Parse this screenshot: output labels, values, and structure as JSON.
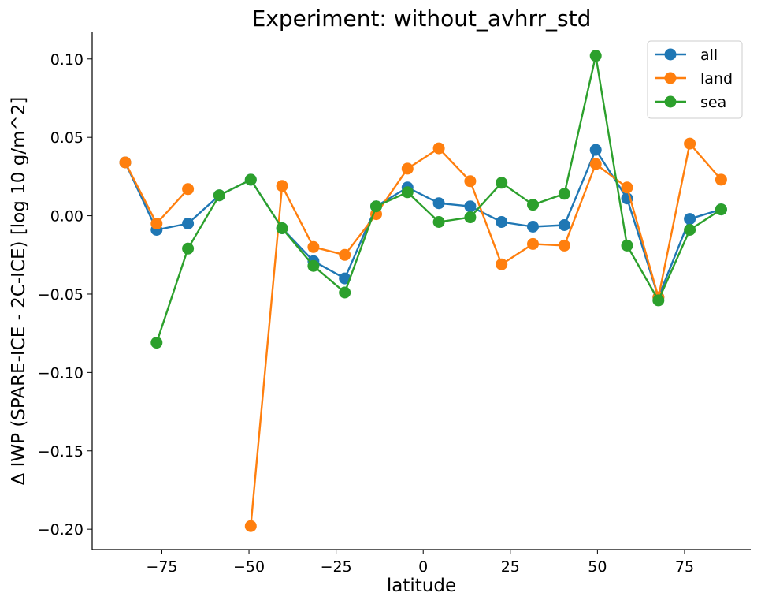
{
  "chart_data": {
    "type": "line",
    "title": "Experiment: without_avhrr_std",
    "xlabel": "latitude",
    "ylabel": "Δ IWP (SPARE-ICE - 2C-ICE) [log 10 g/m^2]",
    "xlim": [
      -95,
      94
    ],
    "ylim": [
      -0.213,
      0.117
    ],
    "xticks": [
      -75,
      -50,
      -25,
      0,
      25,
      50,
      75
    ],
    "xtick_labels": [
      "−75",
      "−50",
      "−25",
      "0",
      "25",
      "50",
      "75"
    ],
    "yticks": [
      0.1,
      0.05,
      0.0,
      -0.05,
      -0.1,
      -0.15,
      -0.2
    ],
    "ytick_labels": [
      "0.10",
      "0.05",
      "0.00",
      "−0.05",
      "−0.10",
      "−0.15",
      "−0.20"
    ],
    "grid": false,
    "legend_position": "top-right",
    "x": [
      -85.5,
      -76.5,
      -67.5,
      -58.5,
      -49.5,
      -40.5,
      -31.5,
      -22.5,
      -13.5,
      -4.5,
      4.5,
      13.5,
      22.5,
      31.5,
      40.5,
      49.5,
      58.5,
      67.5,
      76.5,
      85.5
    ],
    "series": [
      {
        "name": "all",
        "color": "#1f77b4",
        "values": [
          0.034,
          -0.009,
          -0.005,
          0.013,
          0.023,
          -0.008,
          -0.029,
          -0.04,
          0.006,
          0.018,
          0.008,
          0.006,
          -0.004,
          -0.007,
          -0.006,
          0.042,
          0.011,
          -0.052,
          -0.002,
          0.004
        ]
      },
      {
        "name": "land",
        "color": "#ff7f0e",
        "values": [
          0.034,
          -0.005,
          0.017,
          null,
          -0.198,
          0.019,
          -0.02,
          -0.025,
          0.001,
          0.03,
          0.043,
          0.022,
          -0.031,
          -0.018,
          -0.019,
          0.033,
          0.018,
          -0.052,
          0.046,
          0.023
        ]
      },
      {
        "name": "sea",
        "color": "#2ca02c",
        "values": [
          null,
          -0.081,
          -0.021,
          0.013,
          0.023,
          -0.008,
          -0.032,
          -0.049,
          0.006,
          0.015,
          -0.004,
          -0.001,
          0.021,
          0.007,
          0.014,
          0.102,
          -0.019,
          -0.054,
          -0.009,
          0.004
        ]
      }
    ]
  }
}
